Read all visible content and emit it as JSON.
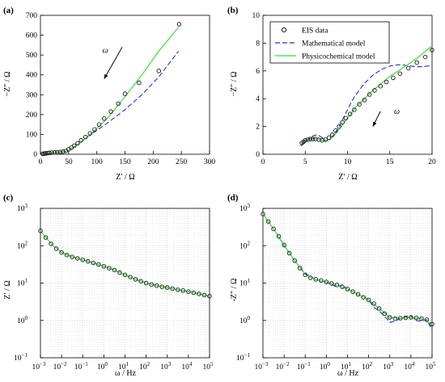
{
  "colors": {
    "eis": "#1a1a1a",
    "mathematical": "#2a2ad6",
    "physicochemical": "#5be35b",
    "grid": "#c8c8c8",
    "arrow": "#000000"
  },
  "legend": {
    "eis": "EIS data",
    "mathematical": "Mathematical model",
    "physicochemical": "Physicochemical model"
  },
  "chart_data": [
    {
      "panel": "(a)",
      "type": "line",
      "xlabel": "Z′ / Ω",
      "ylabel": "−Z″ / Ω",
      "xlim": [
        0,
        300
      ],
      "ylim": [
        0,
        700
      ],
      "xticks": [
        0,
        50,
        100,
        150,
        200,
        250,
        300
      ],
      "yticks": [
        0,
        100,
        200,
        300,
        400,
        500,
        600,
        700
      ],
      "grid": false,
      "annotation": "ω",
      "series": [
        {
          "name": "EIS data",
          "style": "markers",
          "x": [
            4,
            6,
            8,
            10,
            13,
            16,
            20,
            25,
            30,
            35,
            40,
            45,
            50,
            55,
            60,
            66,
            72,
            80,
            88,
            96,
            104,
            113,
            125,
            138,
            150,
            175,
            210,
            246
          ],
          "y": [
            2,
            3,
            4,
            5,
            6,
            7,
            8,
            9,
            10,
            11,
            13,
            17,
            25,
            33,
            43,
            55,
            70,
            87,
            105,
            125,
            150,
            180,
            215,
            255,
            305,
            360,
            420,
            655
          ]
        },
        {
          "name": "Mathematical model",
          "style": "dashed",
          "x": [
            0,
            20,
            40,
            50,
            60,
            70,
            80,
            100,
            120,
            150,
            180,
            210,
            245
          ],
          "y": [
            0,
            6,
            12,
            20,
            38,
            58,
            80,
            120,
            160,
            225,
            300,
            390,
            520
          ]
        },
        {
          "name": "Physicochemical model",
          "style": "solid",
          "x": [
            0,
            20,
            40,
            50,
            60,
            70,
            80,
            100,
            120,
            150,
            180,
            210,
            245
          ],
          "y": [
            0,
            6,
            12,
            20,
            38,
            58,
            80,
            130,
            185,
            290,
            400,
            520,
            640
          ]
        }
      ]
    },
    {
      "panel": "(b)",
      "type": "line",
      "xlabel": "Z′ / Ω",
      "ylabel": "−Z″ / Ω",
      "xlim": [
        0,
        20
      ],
      "ylim": [
        0,
        10
      ],
      "xticks": [
        0,
        5,
        10,
        15,
        20
      ],
      "yticks": [
        0,
        2,
        4,
        6,
        8,
        10
      ],
      "grid": false,
      "annotation": "ω",
      "legend_position": "top-left",
      "series": [
        {
          "name": "EIS data",
          "style": "markers",
          "x": [
            4.6,
            4.8,
            5.0,
            5.3,
            5.6,
            5.9,
            6.2,
            6.6,
            7.0,
            7.4,
            7.8,
            8.2,
            8.6,
            9.0,
            9.4,
            9.8,
            10.3,
            10.8,
            11.4,
            12.0,
            12.6,
            13.2,
            13.9,
            14.6,
            15.4,
            16.2,
            17.2,
            18.2,
            19.2,
            20.0
          ],
          "y": [
            0.8,
            0.9,
            1.0,
            1.05,
            1.1,
            1.1,
            1.1,
            1.05,
            1.0,
            1.05,
            1.2,
            1.4,
            1.7,
            2.0,
            2.3,
            2.6,
            2.9,
            3.2,
            3.6,
            3.9,
            4.3,
            4.6,
            4.9,
            5.2,
            5.5,
            5.8,
            6.2,
            6.6,
            7.0,
            7.5
          ]
        },
        {
          "name": "Mathematical model",
          "style": "dashed",
          "x": [
            4.5,
            5.0,
            5.5,
            6.0,
            6.5,
            7.0,
            7.5,
            8.0,
            8.5,
            9.0,
            9.5,
            10.0,
            10.5,
            11.0,
            12.0,
            13.0,
            14.0,
            15.0,
            16.0,
            17.0,
            18.0,
            19.0,
            20.0
          ],
          "y": [
            0.6,
            0.9,
            1.15,
            1.35,
            1.4,
            1.2,
            0.95,
            1.1,
            1.5,
            2.0,
            2.6,
            3.2,
            3.8,
            4.3,
            5.1,
            5.7,
            6.1,
            6.35,
            6.45,
            6.4,
            6.3,
            6.3,
            6.4
          ]
        },
        {
          "name": "Physicochemical model",
          "style": "solid",
          "x": [
            4.5,
            5.0,
            5.5,
            6.0,
            6.5,
            7.0,
            7.5,
            8.0,
            8.5,
            9.0,
            9.5,
            10.0,
            10.5,
            11.0,
            12.0,
            13.0,
            14.0,
            15.0,
            16.0,
            17.0,
            18.0,
            19.0,
            20.0
          ],
          "y": [
            0.7,
            1.0,
            1.1,
            1.15,
            1.1,
            1.0,
            0.95,
            1.1,
            1.4,
            1.8,
            2.2,
            2.6,
            3.0,
            3.4,
            4.0,
            4.6,
            5.1,
            5.6,
            6.0,
            6.4,
            6.8,
            7.3,
            7.8
          ]
        }
      ]
    },
    {
      "panel": "(c)",
      "type": "line",
      "xlabel": "ω / Hz",
      "ylabel": "Z′ / Ω",
      "xscale": "log",
      "yscale": "log",
      "xlim": [
        0.001,
        100000
      ],
      "ylim": [
        0.1,
        1000
      ],
      "xtick_exponents": [
        -3,
        -2,
        -1,
        0,
        1,
        2,
        3,
        4,
        5
      ],
      "ytick_exponents": [
        -1,
        0,
        1,
        2,
        3
      ],
      "grid": true,
      "series": [
        {
          "name": "EIS data",
          "style": "markers",
          "x_log10": [
            -3,
            -2.75,
            -2.5,
            -2.25,
            -2,
            -1.75,
            -1.5,
            -1.25,
            -1,
            -0.75,
            -0.5,
            -0.25,
            0,
            0.25,
            0.5,
            0.75,
            1,
            1.25,
            1.5,
            1.75,
            2,
            2.25,
            2.5,
            2.75,
            3,
            3.25,
            3.5,
            3.75,
            4,
            4.25,
            4.5,
            4.75,
            5
          ],
          "y_log10": [
            2.4,
            2.22,
            2.05,
            1.92,
            1.82,
            1.75,
            1.7,
            1.66,
            1.62,
            1.58,
            1.54,
            1.5,
            1.45,
            1.4,
            1.35,
            1.28,
            1.22,
            1.16,
            1.1,
            1.05,
            1.0,
            0.96,
            0.93,
            0.9,
            0.88,
            0.85,
            0.82,
            0.8,
            0.77,
            0.74,
            0.71,
            0.68,
            0.65
          ]
        },
        {
          "name": "Mathematical model",
          "style": "dashed",
          "x_log10": [
            -3,
            -2.5,
            -2,
            -1.5,
            -1,
            -0.5,
            0,
            0.5,
            1,
            1.5,
            2,
            2.5,
            3,
            3.5,
            4,
            4.5,
            5
          ],
          "y_log10": [
            2.4,
            2.05,
            1.82,
            1.7,
            1.62,
            1.54,
            1.45,
            1.35,
            1.22,
            1.1,
            1.0,
            0.93,
            0.88,
            0.82,
            0.77,
            0.71,
            0.65
          ]
        },
        {
          "name": "Physicochemical model",
          "style": "solid",
          "x_log10": [
            -3,
            -2.5,
            -2,
            -1.5,
            -1,
            -0.5,
            0,
            0.5,
            1,
            1.5,
            2,
            2.5,
            3,
            3.5,
            4,
            4.5,
            5
          ],
          "y_log10": [
            2.4,
            2.05,
            1.82,
            1.7,
            1.62,
            1.54,
            1.45,
            1.35,
            1.22,
            1.1,
            1.0,
            0.93,
            0.88,
            0.82,
            0.77,
            0.71,
            0.65
          ]
        }
      ]
    },
    {
      "panel": "(d)",
      "type": "line",
      "xlabel": "ω / Hz",
      "ylabel": "-Z″ / Ω",
      "xscale": "log",
      "yscale": "log",
      "xlim": [
        0.001,
        100000
      ],
      "ylim": [
        0.1,
        1000
      ],
      "xtick_exponents": [
        -3,
        -2,
        -1,
        0,
        1,
        2,
        3,
        4,
        5
      ],
      "ytick_exponents": [
        -1,
        0,
        1,
        2,
        3
      ],
      "grid": true,
      "series": [
        {
          "name": "EIS data",
          "style": "markers",
          "x_log10": [
            -3,
            -2.75,
            -2.5,
            -2.25,
            -2,
            -1.75,
            -1.5,
            -1.25,
            -1,
            -0.75,
            -0.5,
            -0.25,
            0,
            0.25,
            0.5,
            0.75,
            1,
            1.25,
            1.5,
            1.75,
            2,
            2.25,
            2.5,
            2.75,
            3,
            3.25,
            3.5,
            3.75,
            4,
            4.25,
            4.5,
            4.75,
            5
          ],
          "y_log10": [
            2.85,
            2.65,
            2.45,
            2.25,
            2.02,
            1.8,
            1.6,
            1.4,
            1.22,
            1.14,
            1.1,
            1.07,
            1.03,
            0.99,
            0.95,
            0.9,
            0.84,
            0.77,
            0.7,
            0.62,
            0.55,
            0.45,
            0.32,
            0.18,
            0.08,
            0.05,
            0.06,
            0.07,
            0.08,
            0.07,
            0.05,
            0.02,
            -0.1
          ]
        },
        {
          "name": "Mathematical model",
          "style": "dashed",
          "x_log10": [
            -3,
            -2.5,
            -2,
            -1.5,
            -1,
            -0.5,
            0,
            0.25,
            0.5,
            0.75,
            1,
            1.5,
            2,
            2.25,
            2.5,
            2.75,
            3,
            3.25,
            3.5,
            3.75,
            4,
            4.25,
            4.5,
            4.75,
            5
          ],
          "y_log10": [
            2.85,
            2.45,
            2.0,
            1.6,
            1.25,
            1.1,
            1.02,
            0.95,
            0.9,
            0.95,
            0.84,
            0.7,
            0.55,
            0.35,
            0.25,
            0.12,
            -0.05,
            -0.02,
            0.05,
            0.1,
            0.12,
            0.0,
            -0.02,
            0.02,
            -0.25
          ]
        },
        {
          "name": "Physicochemical model",
          "style": "solid",
          "x_log10": [
            -3,
            -2.5,
            -2,
            -1.5,
            -1,
            -0.5,
            0,
            0.5,
            1,
            1.5,
            2,
            2.5,
            3,
            3.5,
            4,
            4.5,
            5
          ],
          "y_log10": [
            2.85,
            2.45,
            2.02,
            1.6,
            1.22,
            1.1,
            1.03,
            0.95,
            0.84,
            0.7,
            0.55,
            0.32,
            0.08,
            0.06,
            0.08,
            0.05,
            -0.1
          ]
        }
      ]
    }
  ]
}
